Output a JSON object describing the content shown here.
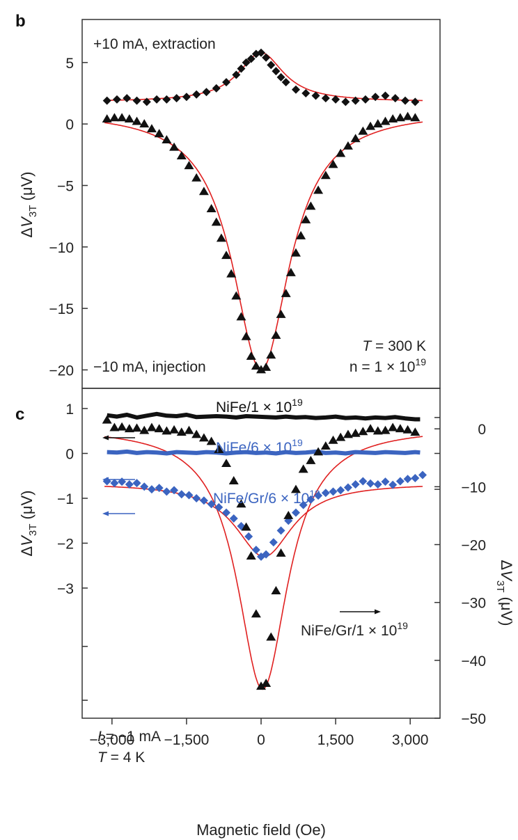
{
  "chart_data": [
    {
      "panel": "b",
      "type": "scatter",
      "xlim": [
        -3600,
        3600
      ],
      "ylim": [
        -21.5,
        8.5
      ],
      "yticks": [
        5,
        0,
        -5,
        -10,
        -15,
        -20
      ],
      "ytick_labels": [
        "5",
        "0",
        "−5",
        "−10",
        "−15",
        "−20"
      ],
      "ylabel": {
        "pre": "Δ",
        "var": "V",
        "sub": "3T",
        "post": " (μV)"
      },
      "annotations": {
        "top_left": "+10 mA, extraction",
        "bottom_left": "−10 mA, injection",
        "temperature": {
          "var": "T",
          "text": " = 300 K"
        },
        "doping": {
          "text": "n = 1 × 10",
          "sup": "19"
        }
      },
      "series": [
        {
          "marker": "diamond",
          "color": "#111111",
          "x": [
            -3100,
            -2900,
            -2700,
            -2500,
            -2300,
            -2100,
            -1900,
            -1700,
            -1500,
            -1300,
            -1100,
            -900,
            -700,
            -500,
            -400,
            -300,
            -200,
            -100,
            0,
            100,
            200,
            300,
            400,
            500,
            700,
            900,
            1100,
            1300,
            1500,
            1700,
            1900,
            2100,
            2300,
            2500,
            2700,
            2900,
            3100
          ],
          "y": [
            1.9,
            2.0,
            2.1,
            1.9,
            1.8,
            2.0,
            2.0,
            2.1,
            2.2,
            2.4,
            2.6,
            2.9,
            3.4,
            4.0,
            4.5,
            5.0,
            5.3,
            5.7,
            5.8,
            5.4,
            4.8,
            4.3,
            3.8,
            3.4,
            2.8,
            2.5,
            2.3,
            2.1,
            2.0,
            1.8,
            1.9,
            2.0,
            2.2,
            2.3,
            2.1,
            1.9,
            1.8
          ]
        },
        {
          "marker": "triangle",
          "color": "#111111",
          "x": [
            -3100,
            -2950,
            -2800,
            -2650,
            -2500,
            -2350,
            -2200,
            -2050,
            -1900,
            -1750,
            -1600,
            -1450,
            -1300,
            -1150,
            -1000,
            -900,
            -800,
            -700,
            -600,
            -500,
            -400,
            -300,
            -200,
            -100,
            0,
            100,
            200,
            300,
            400,
            500,
            600,
            700,
            800,
            900,
            1000,
            1150,
            1300,
            1450,
            1600,
            1750,
            1900,
            2050,
            2200,
            2350,
            2500,
            2650,
            2800,
            2950,
            3100
          ],
          "y": [
            0.4,
            0.5,
            0.5,
            0.4,
            0.2,
            0,
            -0.4,
            -0.8,
            -1.3,
            -1.9,
            -2.6,
            -3.4,
            -4.4,
            -5.5,
            -6.9,
            -8.0,
            -9.3,
            -10.7,
            -12.2,
            -14.0,
            -15.7,
            -17.3,
            -18.9,
            -19.7,
            -20.0,
            -19.8,
            -18.8,
            -17.2,
            -15.5,
            -13.8,
            -12.1,
            -10.5,
            -9.1,
            -7.8,
            -6.7,
            -5.4,
            -4.2,
            -3.3,
            -2.4,
            -1.8,
            -1.2,
            -0.6,
            -0.2,
            0,
            0.2,
            0.4,
            0.5,
            0.6,
            0.5
          ]
        }
      ],
      "fit_color": "#e02020"
    },
    {
      "panel": "c",
      "type": "scatter",
      "xlim": [
        -3600,
        3600
      ],
      "xticks": [
        -3000,
        -1500,
        0,
        1500,
        3000
      ],
      "xtick_labels": [
        "−3,000",
        "−1,500",
        "0",
        "1,500",
        "3,000"
      ],
      "xlabel": "Magnetic field (Oe)",
      "left_axis": {
        "ylim": [
          -5.9,
          1.45
        ],
        "yticks": [
          1,
          0,
          -1,
          -2,
          -3
        ],
        "ytick_labels": [
          "1",
          "0",
          "−1",
          "−2",
          "−3"
        ],
        "ylabel": {
          "pre": "Δ",
          "var": "V",
          "sub": "3T",
          "post": " (μV)"
        }
      },
      "right_axis": {
        "ylim": [
          -50,
          7
        ],
        "yticks": [
          0,
          -10,
          -20,
          -30,
          -40,
          -50
        ],
        "ytick_labels": [
          "0",
          "−10",
          "−20",
          "−30",
          "−40",
          "−50"
        ],
        "ylabel": {
          "pre": "Δ",
          "var": "V",
          "sub": "3T",
          "post": " (μV)"
        }
      },
      "annotations": {
        "current": {
          "var": "I",
          "text": " = −1 mA"
        },
        "temperature": {
          "var": "T",
          "text": " = 4 K"
        }
      },
      "series": [
        {
          "name": "NiFe/1 × 10",
          "sup": "19",
          "axis": "left",
          "marker": "line",
          "color": "#111111",
          "x": [
            -3100,
            -2900,
            -2700,
            -2500,
            -2300,
            -2100,
            -1900,
            -1700,
            -1500,
            -1300,
            -1100,
            -900,
            -700,
            -500,
            -300,
            -100,
            100,
            300,
            500,
            700,
            900,
            1100,
            1300,
            1500,
            1700,
            1900,
            2100,
            2300,
            2500,
            2700,
            2900,
            3100,
            3200
          ],
          "y": [
            0.85,
            0.82,
            0.86,
            0.8,
            0.84,
            0.88,
            0.84,
            0.83,
            0.86,
            0.81,
            0.82,
            0.83,
            0.82,
            0.8,
            0.83,
            0.82,
            0.81,
            0.8,
            0.82,
            0.8,
            0.81,
            0.79,
            0.8,
            0.82,
            0.79,
            0.8,
            0.78,
            0.8,
            0.79,
            0.81,
            0.78,
            0.76,
            0.76
          ]
        },
        {
          "name": "NiFe/6 × 10",
          "sup": "19",
          "axis": "left",
          "marker": "line",
          "color": "#3b64c0",
          "x": [
            -3100,
            -2900,
            -2700,
            -2500,
            -2300,
            -2100,
            -1900,
            -1700,
            -1500,
            -1300,
            -1100,
            -900,
            -700,
            -500,
            -300,
            -100,
            100,
            300,
            500,
            700,
            900,
            1100,
            1300,
            1500,
            1700,
            1900,
            2100,
            2300,
            2500,
            2700,
            2900,
            3100,
            3200
          ],
          "y": [
            0.03,
            0.02,
            0.04,
            0.01,
            0.03,
            0.02,
            0.0,
            0.03,
            0.02,
            0.01,
            0.03,
            0.02,
            0.0,
            0.02,
            0.03,
            0.01,
            0.02,
            0.0,
            0.03,
            0.01,
            0.02,
            0.04,
            0.01,
            0.02,
            0.0,
            0.03,
            0.02,
            0.01,
            0.03,
            0.02,
            0.01,
            0.03,
            0.02
          ]
        },
        {
          "name": "NiFe/Gr/6 × 10",
          "sup": "19",
          "axis": "left",
          "marker": "diamond",
          "color": "#3b64c0",
          "x": [
            -3100,
            -2950,
            -2800,
            -2650,
            -2500,
            -2350,
            -2200,
            -2050,
            -1900,
            -1750,
            -1600,
            -1450,
            -1300,
            -1150,
            -1000,
            -850,
            -700,
            -550,
            -400,
            -250,
            -100,
            0,
            100,
            250,
            400,
            550,
            700,
            850,
            1000,
            1150,
            1300,
            1450,
            1600,
            1750,
            1900,
            2050,
            2200,
            2350,
            2500,
            2650,
            2800,
            2950,
            3100,
            3250
          ],
          "y": [
            -0.62,
            -0.66,
            -0.63,
            -0.69,
            -0.66,
            -0.74,
            -0.8,
            -0.77,
            -0.85,
            -0.82,
            -0.91,
            -0.93,
            -1.0,
            -1.05,
            -1.13,
            -1.2,
            -1.32,
            -1.45,
            -1.62,
            -1.85,
            -2.15,
            -2.3,
            -2.25,
            -1.98,
            -1.72,
            -1.5,
            -1.32,
            -1.15,
            -1.03,
            -0.94,
            -0.88,
            -0.85,
            -0.82,
            -0.76,
            -0.69,
            -0.62,
            -0.67,
            -0.69,
            -0.63,
            -0.7,
            -0.62,
            -0.57,
            -0.55,
            -0.48
          ]
        },
        {
          "name": "NiFe/Gr/1 × 10",
          "sup": "19",
          "axis": "right",
          "marker": "triangle",
          "color": "#111111",
          "x": [
            -3100,
            -2950,
            -2800,
            -2650,
            -2500,
            -2350,
            -2200,
            -2050,
            -1900,
            -1750,
            -1600,
            -1450,
            -1300,
            -1150,
            -1000,
            -850,
            -700,
            -550,
            -400,
            -300,
            -200,
            -100,
            0,
            100,
            200,
            300,
            400,
            550,
            700,
            850,
            1000,
            1150,
            1300,
            1450,
            1600,
            1750,
            1900,
            2050,
            2200,
            2350,
            2500,
            2650,
            2800,
            2950,
            3100
          ],
          "y": [
            1.5,
            0.2,
            0.3,
            0.0,
            0.1,
            -0.3,
            0.2,
            0.0,
            -0.4,
            -0.2,
            -0.6,
            -0.3,
            -1.0,
            -1.6,
            -2.2,
            -3.6,
            -6.0,
            -9.0,
            -13.0,
            -17.0,
            -22.0,
            -32.0,
            -44.5,
            -44.0,
            -36.0,
            -28.0,
            -21.5,
            -15.0,
            -10.5,
            -7.0,
            -5.5,
            -4.0,
            -3.0,
            -2.0,
            -1.5,
            -1.0,
            -0.8,
            -0.5,
            0.0,
            -0.4,
            -0.3,
            0.2,
            0.0,
            -0.2,
            -0.6
          ]
        }
      ],
      "fit_color": "#e02020"
    }
  ],
  "panel_labels": {
    "b": "b",
    "c": "c"
  }
}
